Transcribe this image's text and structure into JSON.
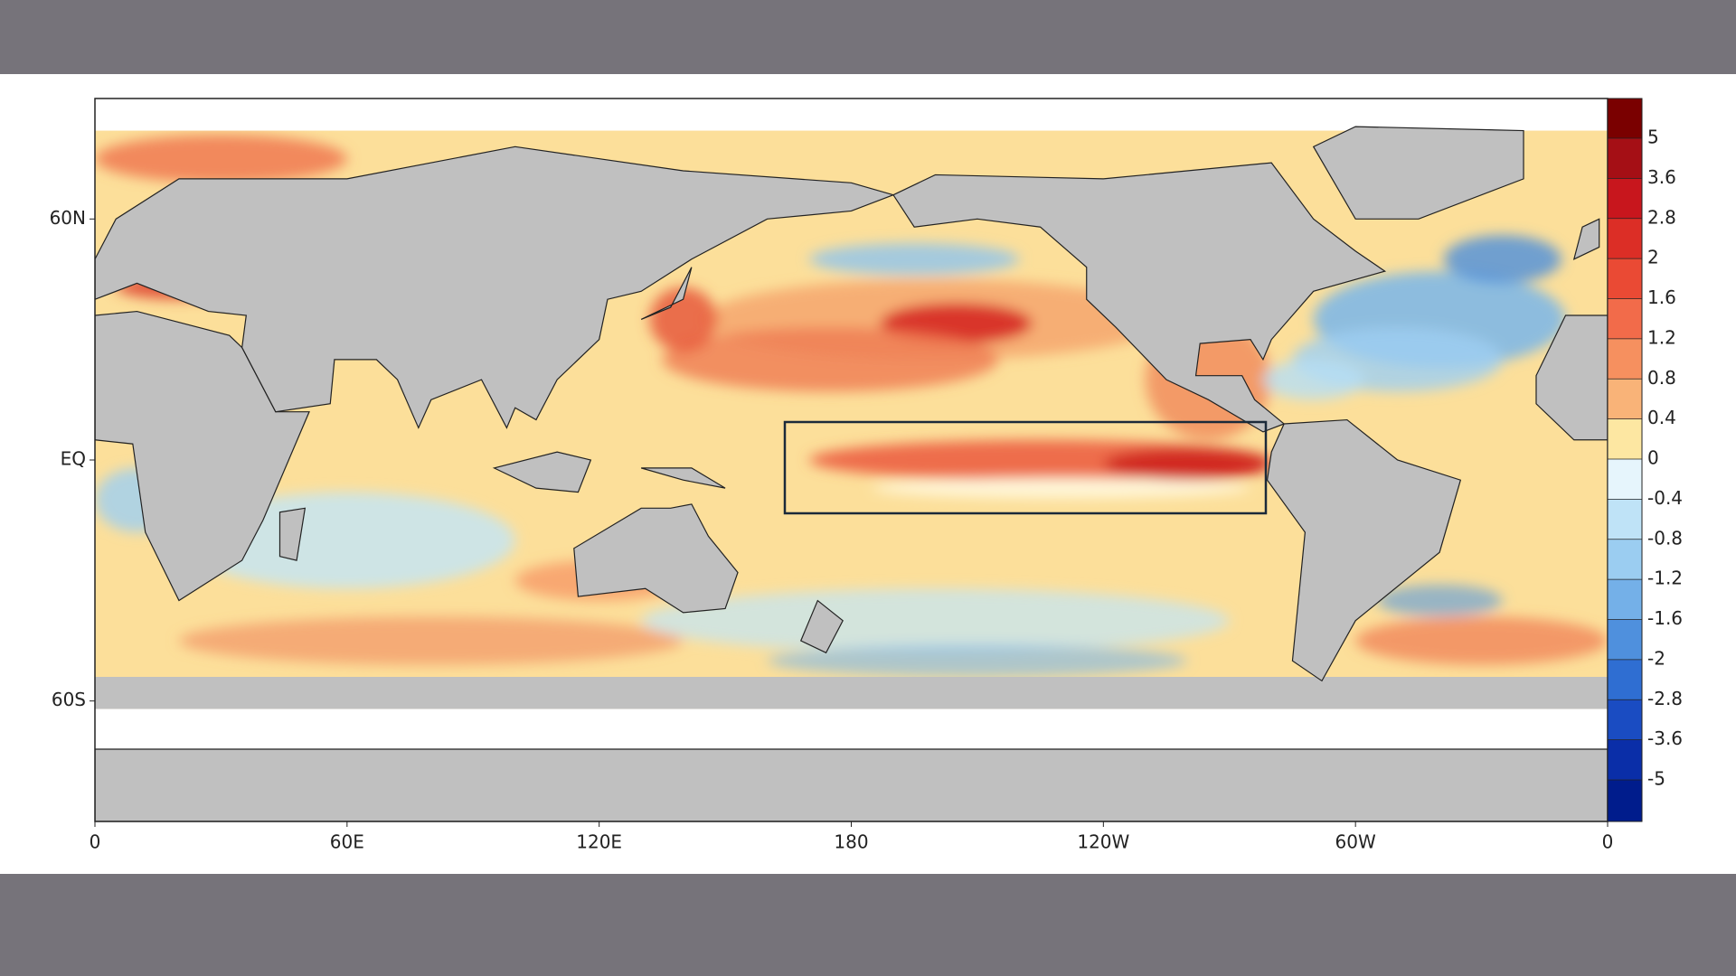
{
  "map": {
    "xlim": [
      0,
      360
    ],
    "ylim": [
      -90,
      90
    ],
    "xticks": [
      0,
      {
        "value": 60,
        "label": "60E"
      },
      {
        "value": 120,
        "label": "120E"
      },
      180,
      {
        "value": 240,
        "label": "120W"
      },
      {
        "value": 300,
        "label": "60W"
      },
      {
        "value": 360,
        "label": "0"
      }
    ],
    "yticks": [
      {
        "value": 60,
        "label": "60N"
      },
      {
        "value": 0,
        "label": "EQ"
      },
      {
        "value": -60,
        "label": "60S"
      }
    ],
    "colorbar": {
      "ticks": [
        5,
        3.6,
        2.8,
        2,
        1.6,
        1.2,
        0.8,
        0.4,
        0,
        -0.4,
        -0.8,
        -1.2,
        -1.6,
        -2,
        -2.8,
        -3.6,
        -5
      ]
    }
  }
}
